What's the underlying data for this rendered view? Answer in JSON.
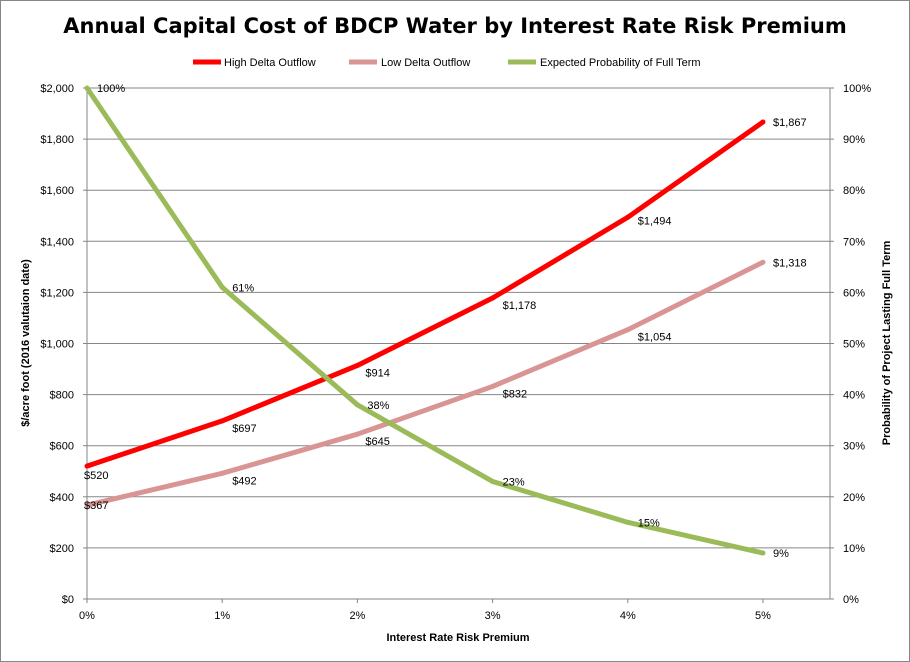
{
  "chart_data": {
    "type": "line",
    "title": "Annual Capital Cost of BDCP Water by Interest Rate Risk Premium",
    "xlabel": "Interest Rate Risk Premium",
    "ylabel": "$/acre foot (2016 valutaion date)",
    "y2label": "Probability of Project Lasting Full Term",
    "categories": [
      "0%",
      "1%",
      "2%",
      "3%",
      "4%",
      "5%"
    ],
    "x": [
      0,
      1,
      2,
      3,
      4,
      5
    ],
    "ylim": [
      0,
      2000
    ],
    "y2lim": [
      0,
      100
    ],
    "yticks": [
      "$0",
      "$200",
      "$400",
      "$600",
      "$800",
      "$1,000",
      "$1,200",
      "$1,400",
      "$1,600",
      "$1,800",
      "$2,000"
    ],
    "y2ticks": [
      "0%",
      "10%",
      "20%",
      "30%",
      "40%",
      "50%",
      "60%",
      "70%",
      "80%",
      "90%",
      "100%"
    ],
    "grid": true,
    "legend_position": "top",
    "series": [
      {
        "name": "High Delta Outflow",
        "axis": "left",
        "color": "#ff0000",
        "values": [
          520,
          697,
          914,
          1178,
          1494,
          1867
        ],
        "labels": [
          "$520",
          "$697",
          "$914",
          "$1,178",
          "$1,494",
          "$1,867"
        ]
      },
      {
        "name": "Low Delta Outflow",
        "axis": "left",
        "color": "#d99594",
        "values": [
          367,
          492,
          645,
          832,
          1054,
          1318
        ],
        "labels": [
          "$367",
          "$492",
          "$645",
          "$832",
          "$1,054",
          "$1,318"
        ]
      },
      {
        "name": "Expected Probability of Full Term",
        "axis": "right",
        "color": "#9bbb59",
        "values": [
          100,
          61,
          38,
          23,
          15,
          9
        ],
        "labels": [
          "100%",
          "61%",
          "38%",
          "23%",
          "15%",
          "9%"
        ]
      }
    ]
  }
}
